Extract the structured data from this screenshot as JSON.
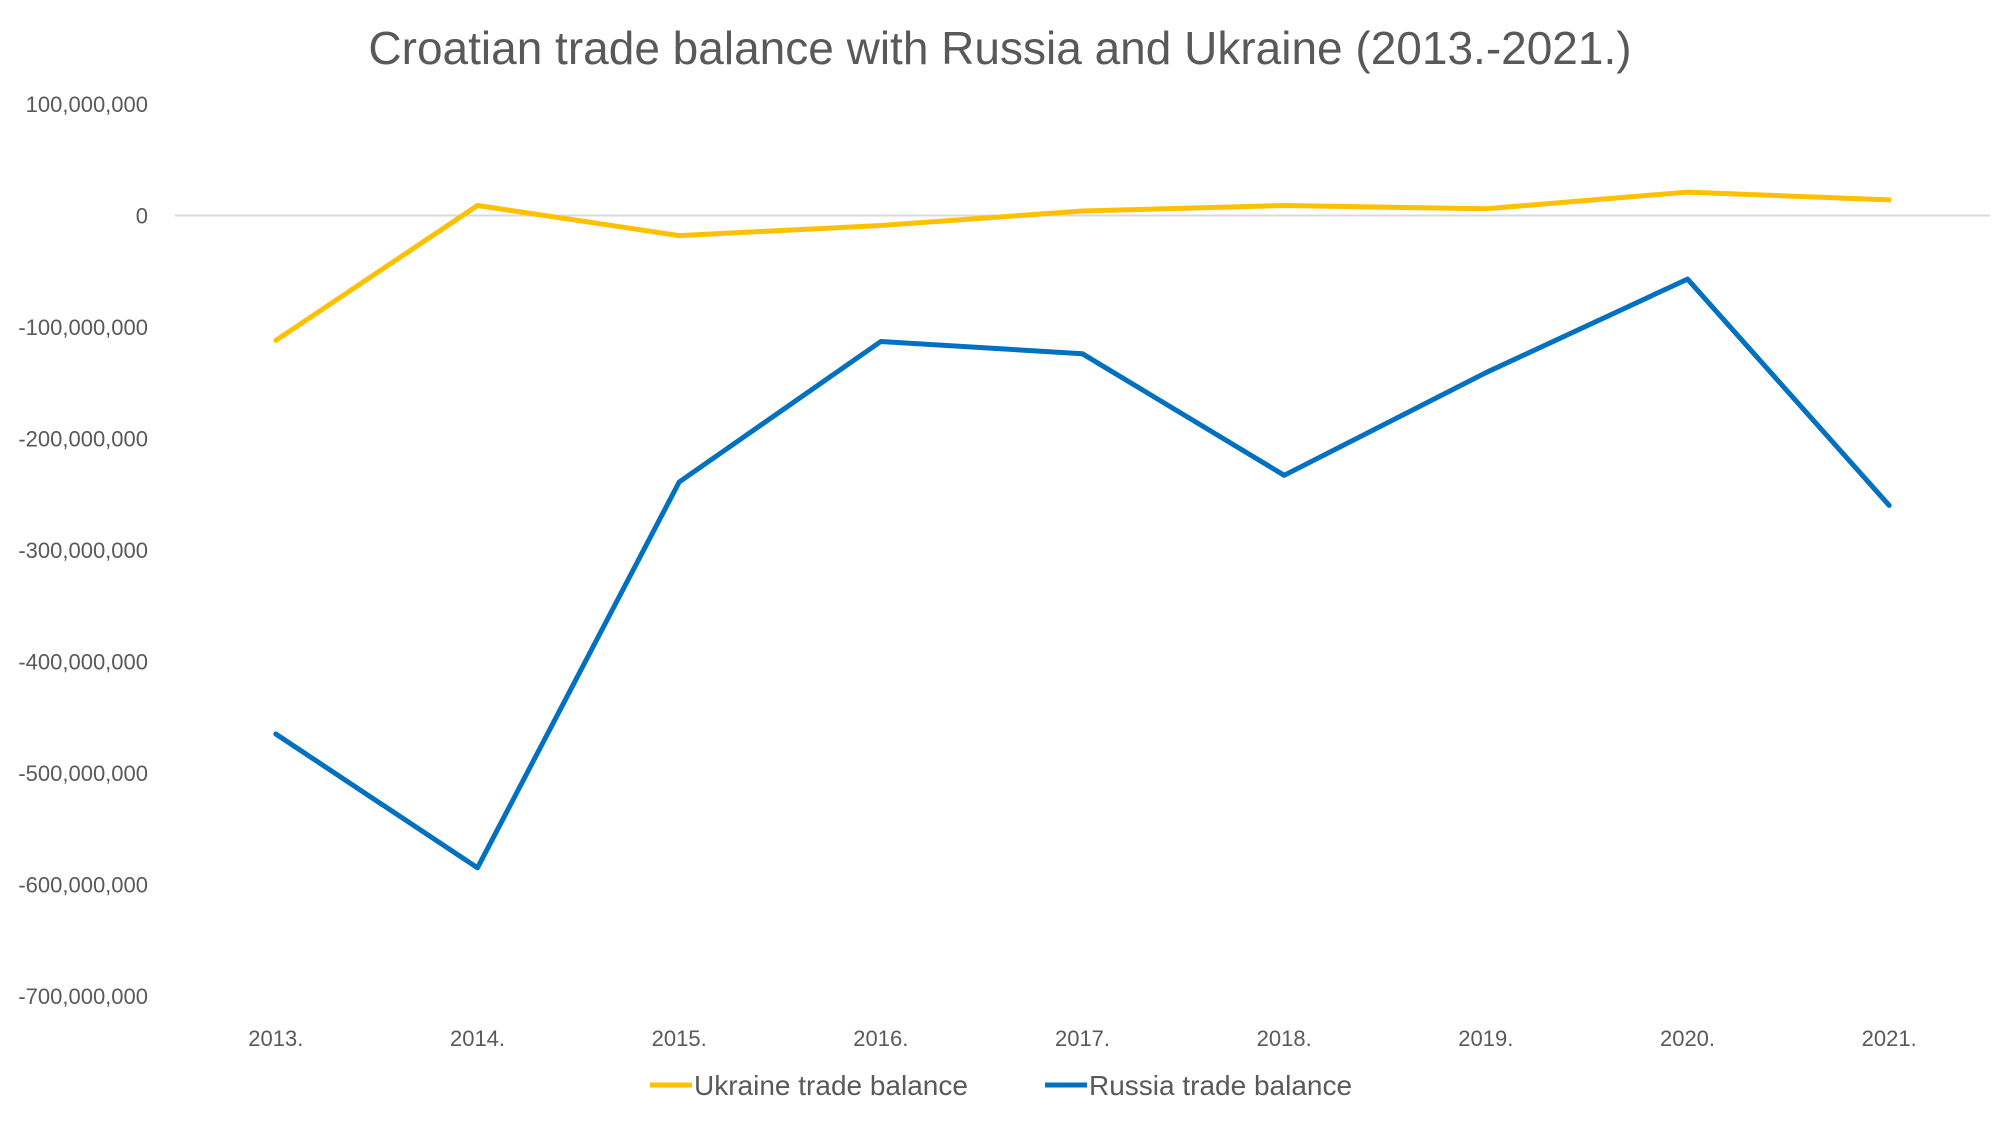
{
  "chart_data": {
    "type": "line",
    "title": "Croatian trade balance with Russia and Ukraine (2013.-2021.)",
    "xlabel": "",
    "ylabel": "",
    "categories": [
      "2013.",
      "2014.",
      "2015.",
      "2016.",
      "2017.",
      "2018.",
      "2019.",
      "2020.",
      "2021."
    ],
    "ylim": [
      -700000000,
      100000000
    ],
    "yticks": [
      100000000,
      0,
      -100000000,
      -200000000,
      -300000000,
      -400000000,
      -500000000,
      -600000000,
      -700000000
    ],
    "ytick_labels": [
      "100,000,000",
      "0",
      "-100,000,000",
      "-200,000,000",
      "-300,000,000",
      "-400,000,000",
      "-500,000,000",
      "-600,000,000",
      "-700,000,000"
    ],
    "grid": false,
    "zero_line": true,
    "legend_position": "bottom",
    "series": [
      {
        "name": "Ukraine trade balance",
        "color": "#FFC000",
        "values": [
          -112000000,
          9000000,
          -18000000,
          -9000000,
          4000000,
          9000000,
          6000000,
          21000000,
          14000000
        ]
      },
      {
        "name": "Russia trade balance",
        "color": "#0070C0",
        "values": [
          -465000000,
          -585000000,
          -239000000,
          -113000000,
          -124000000,
          -233000000,
          -141000000,
          -57000000,
          -260000000
        ]
      }
    ]
  }
}
